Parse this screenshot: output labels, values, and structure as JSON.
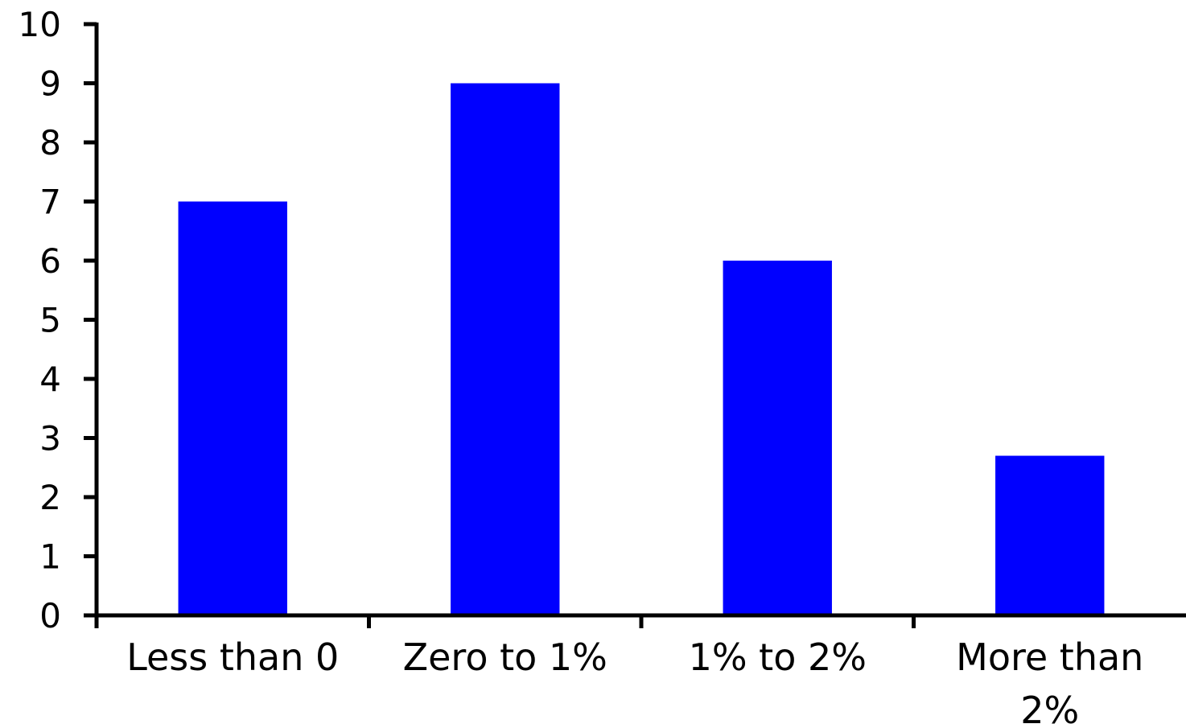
{
  "chart_data": {
    "type": "bar",
    "title": "",
    "xlabel": "",
    "ylabel": "",
    "categories": [
      "Less than 0",
      "Zero to 1%",
      "1% to 2%",
      "More than 2%"
    ],
    "category_lines": [
      [
        "Less than 0"
      ],
      [
        "Zero to 1%"
      ],
      [
        "1% to 2%"
      ],
      [
        "More than",
        "2%"
      ]
    ],
    "values": [
      7,
      9,
      6,
      2.7
    ],
    "ylim": [
      0,
      10
    ],
    "yticks": [
      "0",
      "1",
      "2",
      "3",
      "4",
      "5",
      "6",
      "7",
      "8",
      "9",
      "10"
    ],
    "grid": false,
    "legend": "none",
    "bar_color": "#0000ff",
    "axis_color": "#000000"
  }
}
